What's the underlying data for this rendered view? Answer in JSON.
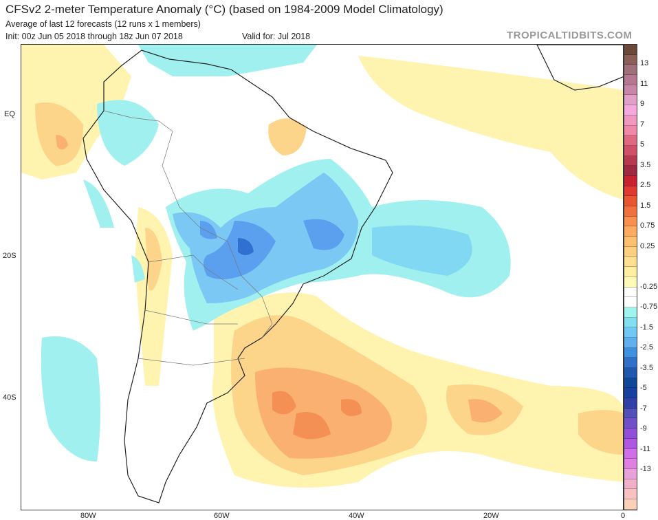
{
  "header": {
    "title": "CFSv2 2-meter Temperature Anomaly (°C) (based on 1984-2009 Model Climatology)",
    "subtitle": "Average of last 12 forecasts (12 runs x 1 members)",
    "init": "Init: 00z Jun 05 2018 through 18z Jun 07 2018",
    "valid": "Valid for: Jul 2018",
    "brand": "TROPICALTIDBITS.COM"
  },
  "axes": {
    "lon_labels": [
      "80W",
      "60W",
      "40W",
      "20W",
      "0"
    ],
    "lat_labels": [
      "EQ",
      "20S",
      "40S"
    ]
  },
  "colorbar": {
    "labels": [
      "13",
      "11",
      "9",
      "7",
      "5",
      "3.5",
      "2.5",
      "1.5",
      "0.75",
      "0.25",
      "-0.25",
      "-0.75",
      "-1.5",
      "-2.5",
      "-3.5",
      "-5",
      "-7",
      "-9",
      "-11",
      "-13"
    ],
    "colors": [
      "#6b4a3a",
      "#8a5f55",
      "#a0707a",
      "#b67890",
      "#c887a8",
      "#e0a0c8",
      "#f4a8dc",
      "#f298c0",
      "#f088a8",
      "#e06880",
      "#d05068",
      "#b83850",
      "#a02840",
      "#c82030",
      "#e03a30",
      "#e85530",
      "#f07040",
      "#f89050",
      "#fcaa60",
      "#fdc070",
      "#fdd080",
      "#fee090",
      "#fef0a0",
      "#fffab8",
      "#ffffff",
      "#ffffff",
      "#a0f4ee",
      "#80e0f0",
      "#70c8f5",
      "#60b0f0",
      "#4090e0",
      "#3070c8",
      "#2058b0",
      "#104898",
      "#1840a0",
      "#3040a8",
      "#5050b8",
      "#7050c8",
      "#9050d8",
      "#b058e0",
      "#d070e8",
      "#e080e0",
      "#e8a0d8",
      "#f0b0c8",
      "#f8c0c0",
      "#fcd0b8"
    ]
  }
}
